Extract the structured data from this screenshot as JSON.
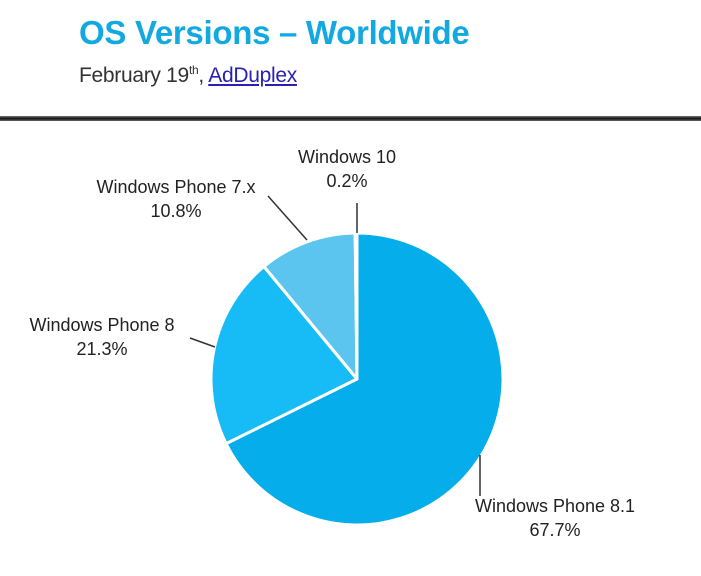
{
  "header": {
    "title": "OS Versions – Worldwide",
    "subtitle_date": "February 19",
    "subtitle_sup": "th",
    "subtitle_sep": ", ",
    "source_link": "AdDuplex"
  },
  "chart_data": {
    "type": "pie",
    "title": "OS Versions – Worldwide",
    "start": "top",
    "direction": "clockwise",
    "slices": [
      {
        "label": "Windows Phone 8.1",
        "value": 67.7,
        "value_label": "67.7%",
        "color": "#05adea"
      },
      {
        "label": "Windows Phone 8",
        "value": 21.3,
        "value_label": "21.3%",
        "color": "#17bbf6"
      },
      {
        "label": "Windows Phone 7.x",
        "value": 10.8,
        "value_label": "10.8%",
        "color": "#5cc5ef"
      },
      {
        "label": "Windows 10",
        "value": 0.2,
        "value_label": "0.2%",
        "color": "#5cc5ef"
      }
    ]
  }
}
